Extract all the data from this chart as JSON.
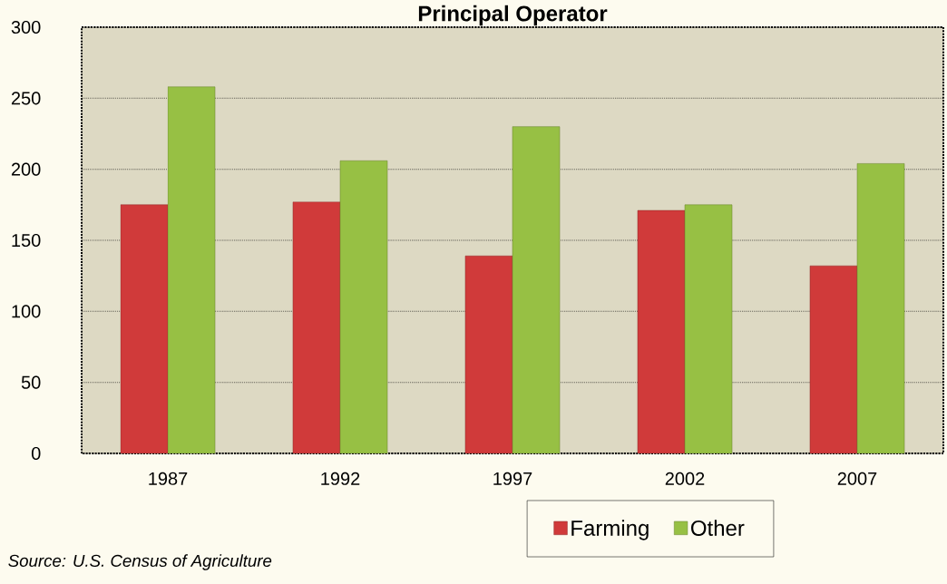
{
  "chart_data": {
    "type": "bar",
    "title": "Principal Operator",
    "categories": [
      "1987",
      "1992",
      "1997",
      "2002",
      "2007"
    ],
    "series": [
      {
        "name": "Farming",
        "color": "#d03a3a",
        "values": [
          175,
          177,
          139,
          171,
          132
        ]
      },
      {
        "name": "Other",
        "color": "#97c044",
        "values": [
          258,
          206,
          230,
          175,
          204
        ]
      }
    ],
    "ylim": [
      0,
      300
    ],
    "yticks": [
      0,
      50,
      100,
      150,
      200,
      250,
      300
    ],
    "grid": "y",
    "legend": "bottom",
    "annotations": [
      "*Source: U.S. Census of Agriculture*"
    ]
  }
}
